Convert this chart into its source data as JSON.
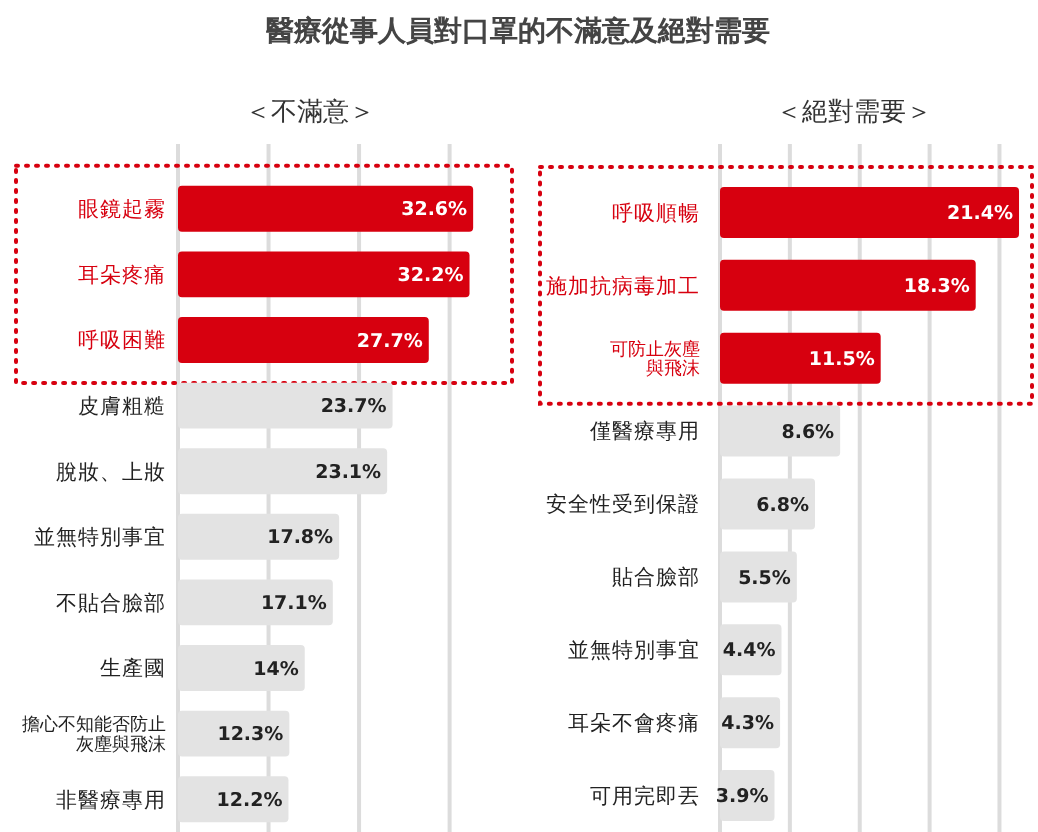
{
  "chart_data": [
    {
      "type": "bar",
      "orientation": "horizontal",
      "title": "醫療從事人員對口罩的不滿意及絕對需要",
      "subtitle": "＜不滿意＞",
      "categories": [
        "眼鏡起霧",
        "耳朵疼痛",
        "呼吸困難",
        "皮膚粗糙",
        "脫妝、上妝",
        "並無特別事宜",
        "不貼合臉部",
        "生產國",
        "擔心不知能否防止灰塵與飛沫",
        "非醫療專用"
      ],
      "values": [
        32.6,
        32.2,
        27.7,
        23.7,
        23.1,
        17.8,
        17.1,
        14,
        12.3,
        12.2
      ],
      "value_labels": [
        "32.6%",
        "32.2%",
        "27.7%",
        "23.7%",
        "23.1%",
        "17.8%",
        "17.1%",
        "14%",
        "12.3%",
        "12.2%"
      ],
      "colors": [
        "#d7000f",
        "#d7000f",
        "#d7000f",
        "#e3e3e3",
        "#e3e3e3",
        "#e3e3e3",
        "#e3e3e3",
        "#e3e3e3",
        "#e3e3e3",
        "#e3e3e3"
      ],
      "xticks": [
        {
          "value": 0,
          "label": null
        },
        {
          "value": 10,
          "label": null
        },
        {
          "value": 20,
          "label": null
        },
        {
          "value": 30,
          "label": null
        }
      ],
      "grid": "x",
      "tick_labels": "y"
    },
    {
      "type": "bar",
      "orientation": "horizontal",
      "subtitle": "＜絕對需要＞",
      "categories": [
        "呼吸順暢",
        "施加抗病毒加工",
        "可防止灰塵與飛沫",
        "僅醫療專用",
        "安全性受到保證",
        "貼合臉部",
        "並無特別事宜",
        "耳朵不會疼痛",
        "可用完即丟"
      ],
      "values": [
        21.4,
        18.3,
        11.5,
        8.6,
        6.8,
        5.5,
        4.4,
        4.3,
        3.9
      ],
      "value_labels": [
        "21.4%",
        "18.3%",
        "11.5%",
        "8.6%",
        "6.8%",
        "5.5%",
        "4.4%",
        "4.3%",
        "3.9%"
      ],
      "colors": [
        "#d7000f",
        "#d7000f",
        "#d7000f",
        "#e3e3e3",
        "#e3e3e3",
        "#e3e3e3",
        "#e3e3e3",
        "#e3e3e3",
        "#e3e3e3"
      ],
      "xticks": [
        {
          "value": 0,
          "label": null
        },
        {
          "value": 5,
          "label": null
        },
        {
          "value": 10,
          "label": null
        },
        {
          "value": 15,
          "label": null
        },
        {
          "value": 20,
          "label": null
        }
      ],
      "grid": "x",
      "tick_labels": "y"
    }
  ]
}
